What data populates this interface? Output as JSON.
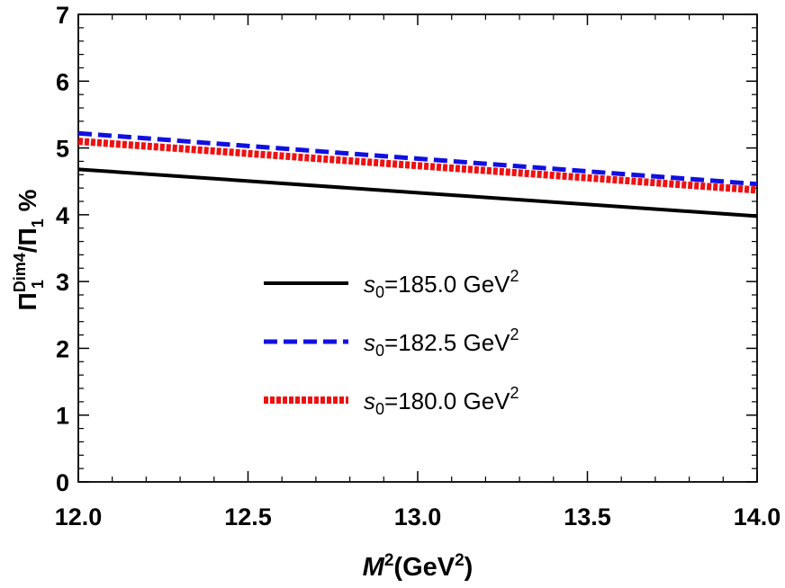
{
  "chart_data": {
    "type": "line",
    "title": "",
    "xlabel": {
      "base": "M",
      "sup": "2",
      "open": "(GeV",
      "unit_sup": "2",
      "close": ")"
    },
    "ylabel": {
      "base": "Π",
      "sup": "Dim4",
      "sub": "1",
      "sep": "/Π",
      "sub2": "1",
      "suffix": " %"
    },
    "xlim": [
      12.0,
      14.0
    ],
    "ylim": [
      0,
      7
    ],
    "x_ticks": [
      "12.0",
      "12.5",
      "13.0",
      "13.5",
      "14.0"
    ],
    "y_ticks": [
      "0",
      "1",
      "2",
      "3",
      "4",
      "5",
      "6",
      "7"
    ],
    "grid": false,
    "legend_position": "center",
    "series": [
      {
        "name_prefix": "s",
        "name_sub": "0",
        "name_value": "=185.0 GeV",
        "name_sup": "2",
        "color": "#000000",
        "style": "solid",
        "x": [
          12.0,
          14.0
        ],
        "y": [
          4.68,
          3.98
        ]
      },
      {
        "name_prefix": "s",
        "name_sub": "0",
        "name_value": "=182.5 GeV",
        "name_sup": "2",
        "color": "#1010e0",
        "style": "dashed",
        "x": [
          12.0,
          14.0
        ],
        "y": [
          5.22,
          4.46
        ]
      },
      {
        "name_prefix": "s",
        "name_sub": "0",
        "name_value": "=180.0 GeV",
        "name_sup": "2",
        "color": "#ee1111",
        "style": "dotted",
        "x": [
          12.0,
          14.0
        ],
        "y": [
          5.1,
          4.37
        ]
      }
    ]
  }
}
